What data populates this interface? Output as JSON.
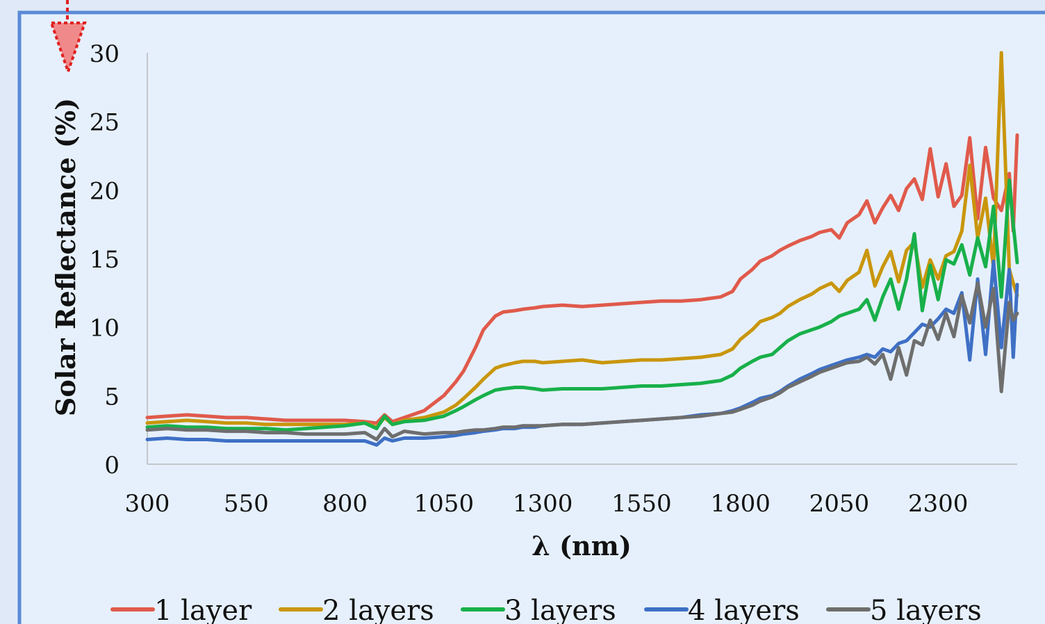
{
  "chart_data": {
    "type": "line",
    "xlabel": "λ (nm)",
    "ylabel": "Solar Reflectance (%)",
    "xlim": [
      300,
      2500
    ],
    "ylim": [
      0,
      30
    ],
    "xticks": [
      300,
      550,
      800,
      1050,
      1300,
      1550,
      1800,
      2050,
      2300
    ],
    "yticks": [
      0,
      5,
      10,
      15,
      20,
      25,
      30
    ],
    "grid": false,
    "legend_position": "bottom",
    "series": [
      {
        "name": "1 layer",
        "color": "#e05a4b",
        "x": [
          300,
          350,
          400,
          450,
          500,
          550,
          600,
          650,
          700,
          750,
          800,
          850,
          880,
          900,
          920,
          950,
          1000,
          1050,
          1080,
          1100,
          1130,
          1150,
          1180,
          1200,
          1230,
          1250,
          1280,
          1300,
          1350,
          1400,
          1450,
          1500,
          1550,
          1600,
          1650,
          1700,
          1750,
          1780,
          1800,
          1830,
          1850,
          1880,
          1900,
          1920,
          1950,
          1980,
          2000,
          2030,
          2050,
          2070,
          2100,
          2120,
          2140,
          2160,
          2180,
          2200,
          2220,
          2240,
          2260,
          2280,
          2300,
          2320,
          2340,
          2360,
          2380,
          2400,
          2420,
          2440,
          2460,
          2480,
          2490,
          2500
        ],
        "y": [
          3.4,
          3.5,
          3.6,
          3.5,
          3.4,
          3.4,
          3.3,
          3.2,
          3.2,
          3.2,
          3.2,
          3.1,
          3.0,
          3.6,
          3.1,
          3.4,
          3.9,
          5.0,
          6.0,
          6.8,
          8.5,
          9.8,
          10.8,
          11.1,
          11.2,
          11.3,
          11.4,
          11.5,
          11.6,
          11.5,
          11.6,
          11.7,
          11.8,
          11.9,
          11.9,
          12.0,
          12.2,
          12.6,
          13.5,
          14.2,
          14.8,
          15.2,
          15.6,
          15.9,
          16.3,
          16.6,
          16.9,
          17.1,
          16.5,
          17.6,
          18.2,
          19.2,
          17.6,
          18.7,
          19.6,
          18.5,
          20.1,
          20.8,
          19.3,
          23.0,
          19.5,
          21.9,
          18.8,
          19.6,
          23.8,
          17.9,
          23.1,
          19.4,
          18.5,
          21.2,
          17.0,
          24.0
        ]
      },
      {
        "name": "2 layers",
        "color": "#c9960c",
        "x": [
          300,
          350,
          400,
          450,
          500,
          550,
          600,
          650,
          700,
          750,
          800,
          850,
          880,
          900,
          920,
          950,
          1000,
          1050,
          1080,
          1100,
          1130,
          1150,
          1180,
          1200,
          1230,
          1250,
          1280,
          1300,
          1350,
          1400,
          1450,
          1500,
          1550,
          1600,
          1650,
          1700,
          1750,
          1780,
          1800,
          1830,
          1850,
          1880,
          1900,
          1920,
          1950,
          1980,
          2000,
          2030,
          2050,
          2070,
          2100,
          2120,
          2140,
          2160,
          2180,
          2200,
          2220,
          2240,
          2260,
          2280,
          2300,
          2320,
          2340,
          2360,
          2380,
          2400,
          2420,
          2440,
          2460,
          2480,
          2490,
          2500
        ],
        "y": [
          3.0,
          3.1,
          3.2,
          3.1,
          3.0,
          3.0,
          2.9,
          2.9,
          2.9,
          2.9,
          2.9,
          3.0,
          2.7,
          3.4,
          2.9,
          3.2,
          3.4,
          3.8,
          4.3,
          4.8,
          5.6,
          6.2,
          7.0,
          7.2,
          7.4,
          7.5,
          7.5,
          7.4,
          7.5,
          7.6,
          7.4,
          7.5,
          7.6,
          7.6,
          7.7,
          7.8,
          8.0,
          8.4,
          9.1,
          9.8,
          10.4,
          10.7,
          11.0,
          11.5,
          12.0,
          12.4,
          12.8,
          13.2,
          12.6,
          13.4,
          14.0,
          15.6,
          13.0,
          14.4,
          15.5,
          13.3,
          15.6,
          16.2,
          12.9,
          14.9,
          13.5,
          15.2,
          15.5,
          17.0,
          21.8,
          16.5,
          19.4,
          14.3,
          30.0,
          14.2,
          13.2,
          12.3
        ]
      },
      {
        "name": "3 layers",
        "color": "#18b04a",
        "x": [
          300,
          350,
          400,
          450,
          500,
          550,
          600,
          650,
          700,
          750,
          800,
          850,
          880,
          900,
          920,
          950,
          1000,
          1050,
          1080,
          1100,
          1130,
          1150,
          1180,
          1200,
          1230,
          1250,
          1280,
          1300,
          1350,
          1400,
          1450,
          1500,
          1550,
          1600,
          1650,
          1700,
          1750,
          1780,
          1800,
          1830,
          1850,
          1880,
          1900,
          1920,
          1950,
          1980,
          2000,
          2030,
          2050,
          2070,
          2100,
          2120,
          2140,
          2160,
          2180,
          2200,
          2220,
          2240,
          2260,
          2280,
          2300,
          2320,
          2340,
          2360,
          2380,
          2400,
          2420,
          2440,
          2460,
          2480,
          2490,
          2500
        ],
        "y": [
          2.7,
          2.8,
          2.7,
          2.7,
          2.6,
          2.6,
          2.6,
          2.5,
          2.6,
          2.7,
          2.8,
          3.0,
          2.6,
          3.5,
          2.9,
          3.1,
          3.2,
          3.5,
          3.9,
          4.2,
          4.7,
          5.0,
          5.4,
          5.5,
          5.6,
          5.6,
          5.5,
          5.4,
          5.5,
          5.5,
          5.5,
          5.6,
          5.7,
          5.7,
          5.8,
          5.9,
          6.1,
          6.5,
          7.0,
          7.5,
          7.8,
          8.0,
          8.5,
          9.0,
          9.5,
          9.8,
          10.0,
          10.4,
          10.8,
          11.0,
          11.3,
          12.0,
          10.5,
          12.2,
          13.5,
          11.3,
          13.5,
          16.8,
          11.2,
          14.5,
          12.0,
          14.9,
          14.6,
          16.0,
          13.8,
          16.5,
          14.4,
          18.8,
          12.2,
          20.7,
          17.5,
          14.7
        ]
      },
      {
        "name": "4 layers",
        "color": "#3e70c5",
        "x": [
          300,
          350,
          400,
          450,
          500,
          550,
          600,
          650,
          700,
          750,
          800,
          850,
          880,
          900,
          920,
          950,
          1000,
          1050,
          1080,
          1100,
          1130,
          1150,
          1180,
          1200,
          1230,
          1250,
          1280,
          1300,
          1350,
          1400,
          1450,
          1500,
          1550,
          1600,
          1650,
          1700,
          1750,
          1780,
          1800,
          1830,
          1850,
          1880,
          1900,
          1920,
          1950,
          1980,
          2000,
          2030,
          2050,
          2070,
          2100,
          2120,
          2140,
          2160,
          2180,
          2200,
          2220,
          2240,
          2260,
          2280,
          2300,
          2320,
          2340,
          2360,
          2380,
          2400,
          2420,
          2440,
          2460,
          2480,
          2490,
          2500
        ],
        "y": [
          1.8,
          1.9,
          1.8,
          1.8,
          1.7,
          1.7,
          1.7,
          1.7,
          1.7,
          1.7,
          1.7,
          1.7,
          1.4,
          1.9,
          1.7,
          1.9,
          1.9,
          2.0,
          2.1,
          2.2,
          2.3,
          2.4,
          2.5,
          2.6,
          2.6,
          2.7,
          2.7,
          2.8,
          2.9,
          2.9,
          3.0,
          3.1,
          3.2,
          3.3,
          3.4,
          3.6,
          3.7,
          3.9,
          4.1,
          4.5,
          4.8,
          5.0,
          5.3,
          5.7,
          6.2,
          6.6,
          6.9,
          7.2,
          7.4,
          7.6,
          7.8,
          8.0,
          7.8,
          8.4,
          8.2,
          8.8,
          9.0,
          9.6,
          10.2,
          10.0,
          10.6,
          11.3,
          11.0,
          12.5,
          7.6,
          13.5,
          8.0,
          14.8,
          8.5,
          14.2,
          7.8,
          13.1
        ]
      },
      {
        "name": "5 layers",
        "color": "#6e6e6e",
        "x": [
          300,
          350,
          400,
          450,
          500,
          550,
          600,
          650,
          700,
          750,
          800,
          850,
          880,
          900,
          920,
          950,
          1000,
          1050,
          1080,
          1100,
          1130,
          1150,
          1180,
          1200,
          1230,
          1250,
          1280,
          1300,
          1350,
          1400,
          1450,
          1500,
          1550,
          1600,
          1650,
          1700,
          1750,
          1780,
          1800,
          1830,
          1850,
          1880,
          1900,
          1920,
          1950,
          1980,
          2000,
          2030,
          2050,
          2070,
          2100,
          2120,
          2140,
          2160,
          2180,
          2200,
          2220,
          2240,
          2260,
          2280,
          2300,
          2320,
          2340,
          2360,
          2380,
          2400,
          2420,
          2440,
          2460,
          2480,
          2490,
          2500
        ],
        "y": [
          2.5,
          2.6,
          2.5,
          2.5,
          2.4,
          2.4,
          2.3,
          2.3,
          2.2,
          2.2,
          2.2,
          2.3,
          1.8,
          2.6,
          2.0,
          2.4,
          2.2,
          2.3,
          2.3,
          2.4,
          2.5,
          2.5,
          2.6,
          2.7,
          2.7,
          2.8,
          2.8,
          2.8,
          2.9,
          2.9,
          3.0,
          3.1,
          3.2,
          3.3,
          3.4,
          3.5,
          3.7,
          3.8,
          4.0,
          4.3,
          4.6,
          4.9,
          5.2,
          5.6,
          6.0,
          6.4,
          6.7,
          7.0,
          7.2,
          7.4,
          7.5,
          7.8,
          7.3,
          8.0,
          6.2,
          8.5,
          6.5,
          9.0,
          8.7,
          10.5,
          9.1,
          11.0,
          9.3,
          12.3,
          10.3,
          13.2,
          10.0,
          12.8,
          5.3,
          11.8,
          10.5,
          11.0
        ]
      }
    ]
  }
}
